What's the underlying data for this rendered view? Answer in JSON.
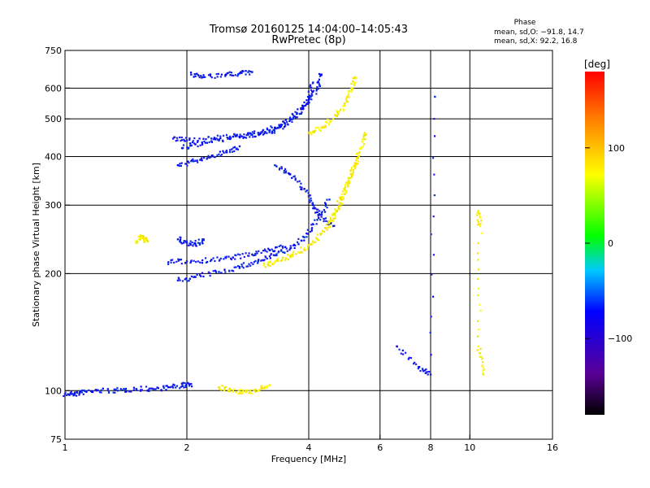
{
  "chart_data": {
    "type": "scatter",
    "title": "Tromsø 20160125 14:04:00–14:05:43",
    "subtitle": "RwPretec (8p)",
    "xlabel": "Frequency [MHz]",
    "ylabel": "Stationary phase Virtual Height [km]",
    "xscale": "log",
    "yscale": "log",
    "xlim": [
      1,
      16
    ],
    "ylim": [
      75,
      750
    ],
    "x_ticks": [
      1,
      2,
      4,
      6,
      8,
      10,
      16
    ],
    "x_tick_labels": [
      "1",
      "2",
      "4",
      "6",
      "8",
      "10",
      "16"
    ],
    "y_ticks": [
      75,
      100,
      200,
      300,
      400,
      500,
      600,
      750
    ],
    "y_tick_labels": [
      "75",
      "100",
      "200",
      "300",
      "400",
      "500",
      "600",
      "750"
    ],
    "grid_x": [
      2,
      4,
      6,
      8,
      10
    ],
    "grid_y": [
      100,
      200,
      300,
      400,
      500,
      600
    ],
    "grid": true,
    "colorbar": {
      "label": "[deg]",
      "ticks": [
        100,
        0,
        -100
      ],
      "tick_labels": [
        "100",
        "0",
        "−100"
      ],
      "range": [
        -180,
        180
      ],
      "colors": [
        "#000000",
        "#5a0096",
        "#0000ff",
        "#00c8ff",
        "#00ff00",
        "#ffff00",
        "#ff8000",
        "#ff0000"
      ]
    },
    "stats": {
      "header": "Phase",
      "line_o": "mean, sd,O: −91.8, 14.7",
      "line_x": "mean, sd,X:  92.2, 16.8"
    },
    "series": [
      {
        "mode": "O",
        "phase_mean": -91.8,
        "traces": [
          {
            "points": [
              [
                1.0,
                98
              ],
              [
                1.05,
                98
              ],
              [
                1.1,
                99
              ],
              [
                1.2,
                100
              ],
              [
                1.35,
                100
              ],
              [
                1.5,
                101
              ],
              [
                1.65,
                101
              ],
              [
                1.8,
                102
              ],
              [
                1.95,
                103
              ],
              [
                2.05,
                104
              ]
            ]
          },
          {
            "points": [
              [
                1.8,
                214
              ],
              [
                2.0,
                215
              ],
              [
                2.3,
                217
              ],
              [
                2.6,
                220
              ],
              [
                2.9,
                224
              ],
              [
                3.2,
                230
              ],
              [
                3.5,
                234
              ]
            ]
          },
          {
            "points": [
              [
                1.9,
                192
              ],
              [
                2.1,
                196
              ],
              [
                2.4,
                202
              ],
              [
                2.7,
                208
              ],
              [
                3.0,
                215
              ],
              [
                3.3,
                223
              ],
              [
                3.6,
                232
              ],
              [
                3.9,
                248
              ],
              [
                4.2,
                275
              ],
              [
                4.5,
                310
              ]
            ]
          },
          {
            "points": [
              [
                1.85,
                445
              ],
              [
                2.0,
                440
              ],
              [
                2.3,
                445
              ],
              [
                2.6,
                450
              ],
              [
                2.9,
                455
              ],
              [
                3.2,
                462
              ],
              [
                3.5,
                480
              ],
              [
                3.8,
                515
              ],
              [
                4.0,
                560
              ],
              [
                4.1,
                620
              ]
            ]
          },
          {
            "points": [
              [
                1.95,
                420
              ],
              [
                2.1,
                430
              ],
              [
                2.4,
                440
              ],
              [
                2.7,
                450
              ],
              [
                3.0,
                460
              ],
              [
                3.3,
                475
              ],
              [
                3.6,
                500
              ],
              [
                3.9,
                540
              ],
              [
                4.2,
                600
              ],
              [
                4.3,
                650
              ]
            ]
          },
          {
            "points": [
              [
                1.9,
                380
              ],
              [
                2.1,
                390
              ],
              [
                2.3,
                400
              ],
              [
                2.5,
                410
              ],
              [
                2.7,
                425
              ]
            ]
          },
          {
            "points": [
              [
                3.3,
                380
              ],
              [
                3.6,
                360
              ],
              [
                3.9,
                330
              ],
              [
                4.1,
                300
              ],
              [
                4.3,
                280
              ],
              [
                4.6,
                265
              ]
            ]
          },
          {
            "points": [
              [
                1.9,
                245
              ],
              [
                2.0,
                240
              ],
              [
                2.1,
                238
              ],
              [
                2.2,
                245
              ]
            ]
          },
          {
            "points": [
              [
                2.05,
                650
              ],
              [
                2.2,
                640
              ],
              [
                2.5,
                650
              ],
              [
                2.7,
                655
              ],
              [
                2.9,
                660
              ]
            ]
          },
          {
            "points": [
              [
                6.6,
                130
              ],
              [
                7.5,
                115
              ],
              [
                8.0,
                110
              ],
              [
                8.2,
                570
              ]
            ]
          }
        ]
      },
      {
        "mode": "X",
        "phase_mean": 92.2,
        "traces": [
          {
            "points": [
              [
                3.1,
                210
              ],
              [
                3.3,
                215
              ],
              [
                3.6,
                222
              ],
              [
                3.9,
                232
              ],
              [
                4.2,
                245
              ],
              [
                4.5,
                270
              ],
              [
                4.8,
                310
              ],
              [
                5.0,
                345
              ],
              [
                5.2,
                380
              ],
              [
                5.4,
                420
              ],
              [
                5.5,
                460
              ]
            ]
          },
          {
            "points": [
              [
                4.0,
                460
              ],
              [
                4.3,
                475
              ],
              [
                4.6,
                500
              ],
              [
                4.9,
                540
              ],
              [
                5.1,
                600
              ],
              [
                5.2,
                640
              ]
            ]
          },
          {
            "points": [
              [
                4.5,
                265
              ],
              [
                4.7,
                290
              ],
              [
                4.9,
                320
              ],
              [
                5.1,
                360
              ],
              [
                5.3,
                400
              ]
            ]
          },
          {
            "points": [
              [
                2.4,
                102
              ],
              [
                2.6,
                100
              ],
              [
                2.8,
                99
              ],
              [
                3.0,
                100
              ],
              [
                3.2,
                103
              ]
            ]
          },
          {
            "points": [
              [
                1.5,
                240
              ],
              [
                1.55,
                250
              ],
              [
                1.6,
                242
              ]
            ]
          },
          {
            "points": [
              [
                10.5,
                290
              ],
              [
                10.6,
                265
              ],
              [
                10.5,
                130
              ],
              [
                10.8,
                110
              ]
            ]
          }
        ]
      }
    ]
  }
}
